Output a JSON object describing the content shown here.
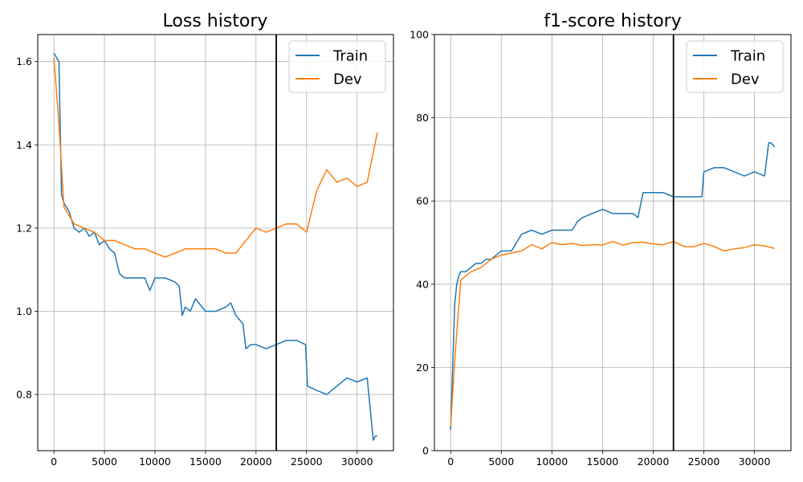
{
  "chart_data": [
    {
      "type": "line",
      "title": "Loss history",
      "xlabel": "",
      "ylabel": "",
      "xlim": [
        -1600,
        33600
      ],
      "ylim": [
        0.665,
        1.665
      ],
      "xticks": [
        0,
        5000,
        10000,
        15000,
        20000,
        25000,
        30000
      ],
      "yticks": [
        0.8,
        1.0,
        1.2,
        1.4,
        1.6
      ],
      "ytick_decimals": 1,
      "grid": true,
      "legend": "top-right",
      "vline_x": 22000,
      "series": [
        {
          "name": "Train",
          "color": "#1f77b4",
          "x": [
            0,
            250,
            500,
            750,
            1000,
            1500,
            2000,
            2500,
            3000,
            3500,
            4000,
            4500,
            5000,
            5500,
            6000,
            6500,
            7000,
            8000,
            9000,
            9500,
            10000,
            11000,
            12000,
            12400,
            12700,
            13000,
            13500,
            14000,
            15000,
            16000,
            17000,
            17500,
            18000,
            18700,
            19000,
            19500,
            20000,
            21000,
            22000,
            23000,
            24000,
            24900,
            25100,
            26000,
            27000,
            28000,
            29000,
            30000,
            31000,
            31400,
            31600,
            31800,
            32000
          ],
          "y": [
            1.62,
            1.61,
            1.6,
            1.28,
            1.26,
            1.24,
            1.2,
            1.19,
            1.2,
            1.18,
            1.19,
            1.16,
            1.17,
            1.15,
            1.14,
            1.09,
            1.08,
            1.08,
            1.08,
            1.05,
            1.08,
            1.08,
            1.07,
            1.06,
            0.99,
            1.01,
            1.0,
            1.03,
            1.0,
            1.0,
            1.01,
            1.02,
            0.99,
            0.97,
            0.91,
            0.92,
            0.92,
            0.91,
            0.92,
            0.93,
            0.93,
            0.92,
            0.82,
            0.81,
            0.8,
            0.82,
            0.84,
            0.83,
            0.84,
            0.74,
            0.69,
            0.7,
            0.7
          ]
        },
        {
          "name": "Dev",
          "color": "#ff7f0e",
          "x": [
            0,
            500,
            1000,
            2000,
            3000,
            4000,
            5000,
            6000,
            7000,
            8000,
            9000,
            10000,
            11000,
            12000,
            13000,
            14000,
            15000,
            16000,
            17000,
            18000,
            19000,
            20000,
            21000,
            22000,
            23000,
            24000,
            25000,
            26000,
            27000,
            28000,
            29000,
            30000,
            31000,
            32000
          ],
          "y": [
            1.61,
            1.45,
            1.25,
            1.21,
            1.2,
            1.19,
            1.17,
            1.17,
            1.16,
            1.15,
            1.15,
            1.14,
            1.13,
            1.14,
            1.15,
            1.15,
            1.15,
            1.15,
            1.14,
            1.14,
            1.17,
            1.2,
            1.19,
            1.2,
            1.21,
            1.21,
            1.19,
            1.29,
            1.34,
            1.31,
            1.32,
            1.3,
            1.31,
            1.43
          ]
        }
      ]
    },
    {
      "type": "line",
      "title": "f1-score history",
      "xlabel": "",
      "ylabel": "",
      "xlim": [
        -1600,
        33600
      ],
      "ylim": [
        0,
        100
      ],
      "xticks": [
        0,
        5000,
        10000,
        15000,
        20000,
        25000,
        30000
      ],
      "yticks": [
        0,
        20,
        40,
        60,
        80,
        100
      ],
      "ytick_decimals": 0,
      "grid": true,
      "legend": "top-right",
      "vline_x": 22000,
      "series": [
        {
          "name": "Train",
          "color": "#1f77b4",
          "x": [
            0,
            200,
            400,
            600,
            800,
            1000,
            1500,
            2000,
            2500,
            3000,
            3500,
            4000,
            5000,
            6000,
            6500,
            7000,
            8000,
            9000,
            10000,
            11000,
            12000,
            12500,
            13000,
            14000,
            15000,
            16000,
            17000,
            18000,
            18500,
            19000,
            20000,
            21000,
            22000,
            23000,
            24000,
            24800,
            25000,
            26000,
            27000,
            28000,
            29000,
            30000,
            31000,
            31400,
            31600,
            32000
          ],
          "y": [
            5,
            20,
            35,
            40,
            42,
            43,
            43,
            44,
            45,
            45,
            46,
            46,
            48,
            48,
            50,
            52,
            53,
            52,
            53,
            53,
            53,
            55,
            56,
            57,
            58,
            57,
            57,
            57,
            56,
            62,
            62,
            62,
            61,
            61,
            61,
            61,
            67,
            68,
            68,
            67,
            66,
            67,
            66,
            74,
            74,
            73
          ]
        },
        {
          "name": "Dev",
          "color": "#ff7f0e",
          "x": [
            0,
            500,
            1000,
            2000,
            3000,
            4000,
            5000,
            6000,
            7000,
            8000,
            9000,
            10000,
            11000,
            12000,
            13000,
            14000,
            15000,
            16000,
            17000,
            18000,
            19000,
            20000,
            21000,
            22000,
            23000,
            24000,
            25000,
            26000,
            27000,
            28000,
            29000,
            30000,
            31000,
            32000
          ],
          "y": [
            6,
            25,
            41,
            43,
            44,
            46,
            47,
            47.5,
            48,
            49.5,
            48.5,
            50,
            49.5,
            49.8,
            49.3,
            49.5,
            49.4,
            50.3,
            49.4,
            50,
            50.1,
            49.7,
            49.5,
            50.3,
            49.1,
            49,
            49.8,
            49.1,
            48,
            48.5,
            48.8,
            49.5,
            49.2,
            48.6
          ]
        }
      ]
    }
  ]
}
